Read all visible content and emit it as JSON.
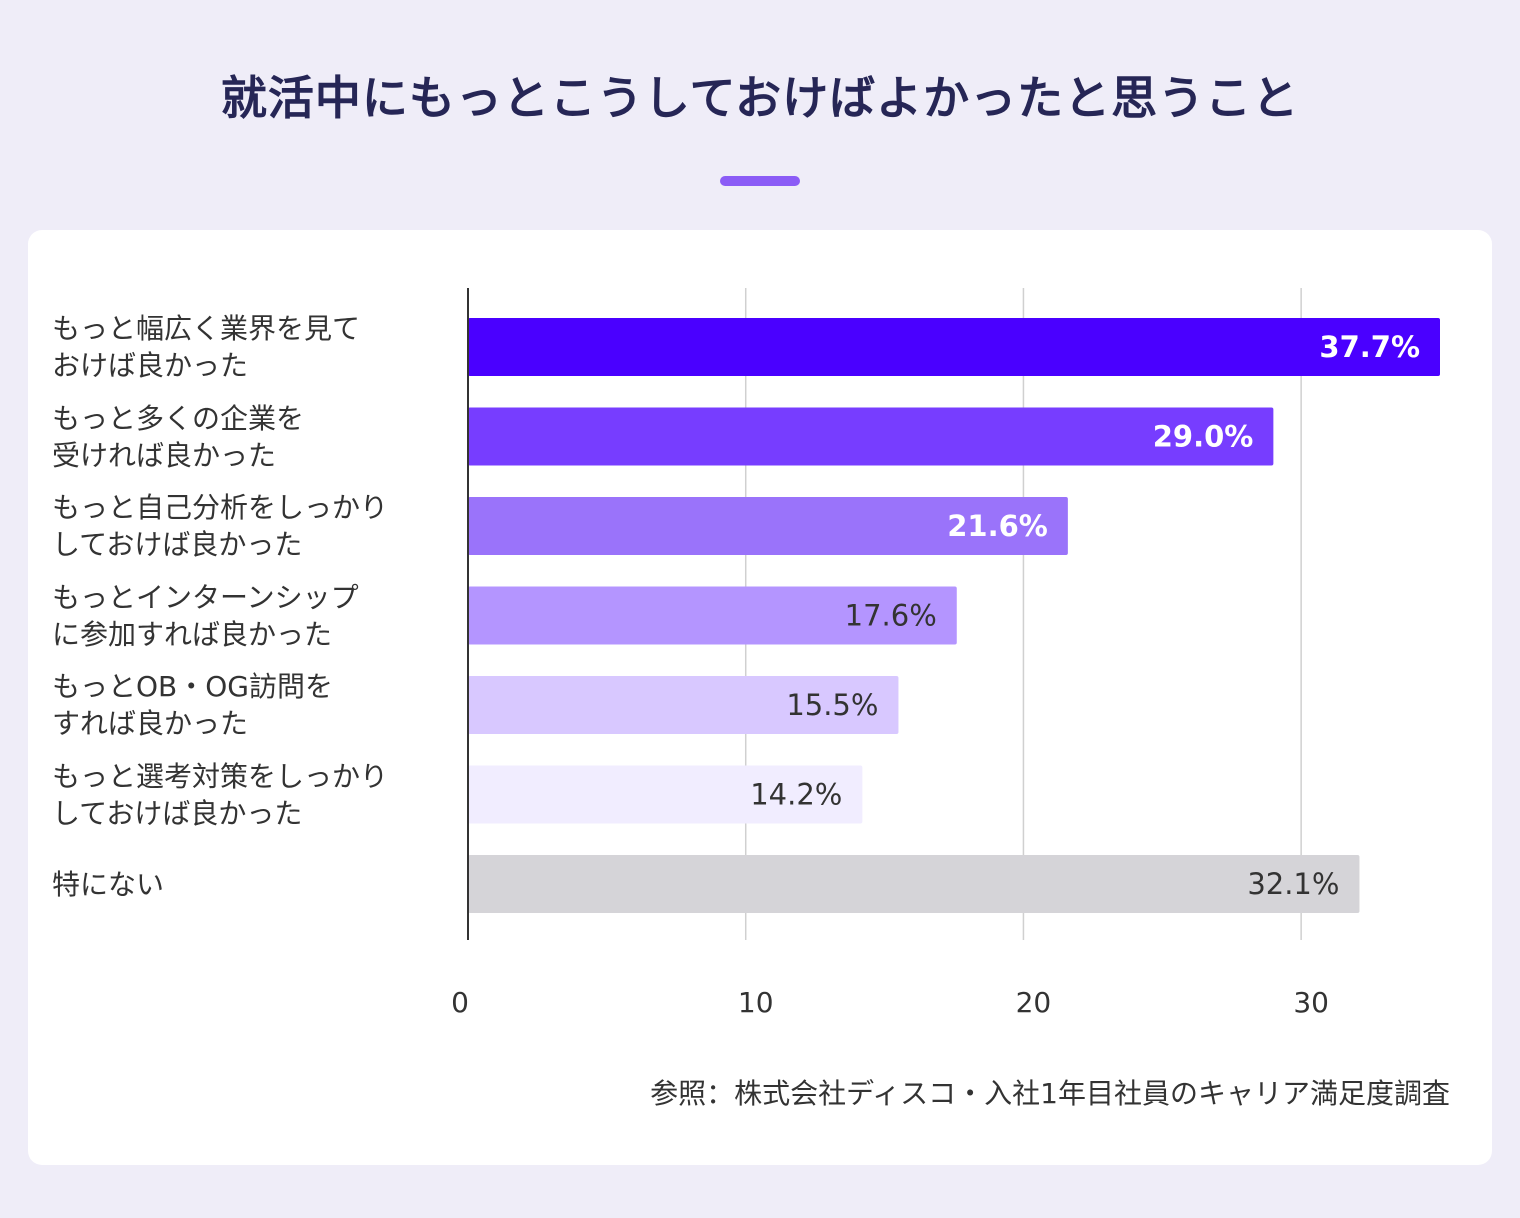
{
  "title": "就活中にもっとこうしておけばよかったと思うこと",
  "source": "参照：株式会社ディスコ・入社1年目社員のキャリア満足度調査",
  "chart_data": {
    "type": "bar",
    "orientation": "horizontal",
    "title": "就活中にもっとこうしておけばよかったと思うこと",
    "categories": [
      "もっと幅広く業界を見て\nおけば良かった",
      "もっと多くの企業を\n受ければ良かった",
      "もっと自己分析をしっかり\nしておけば良かった",
      "もっとインターンシップ\nに参加すれば良かった",
      "もっとOB・OG訪問を\nすれば良かった",
      "もっと選考対策をしっかり\nしておけば良かった",
      "特にない"
    ],
    "values": [
      37.7,
      29.0,
      21.6,
      17.6,
      15.5,
      14.2,
      32.1
    ],
    "data_labels": [
      "37.7%",
      "29.0%",
      "21.6%",
      "17.6%",
      "15.5%",
      "14.2%",
      "32.1%"
    ],
    "colors": [
      "#4a00ff",
      "#773dff",
      "#9a73fa",
      "#b495ff",
      "#d8c8ff",
      "#f1edff",
      "#d5d4d8"
    ],
    "label_colors": [
      "#ffffff",
      "#ffffff",
      "#ffffff",
      "#333333",
      "#333333",
      "#333333",
      "#333333"
    ],
    "xticks": [
      0,
      10,
      20,
      30
    ],
    "xlim": [
      0,
      35
    ],
    "grid": true,
    "xlabel": "",
    "ylabel": ""
  }
}
